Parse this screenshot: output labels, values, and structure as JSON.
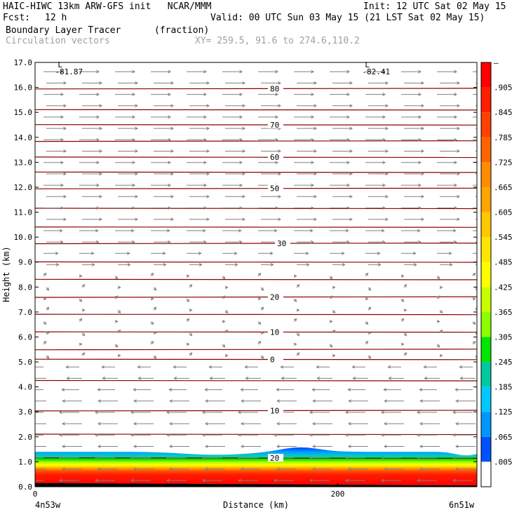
{
  "header": {
    "model_line": "HAIC-HIWC 13km ARW-GFS init   NCAR/MMM",
    "init_line": "Init: 12 UTC Sat 02 May 15",
    "fcst_label": "Fcst:",
    "fcst_value": "12 h",
    "valid_line": "Valid: 00 UTC Sun 03 May 15 (21 LST Sat 02 May 15)",
    "field_name": "Boundary Layer Tracer",
    "field_units": "(fraction)",
    "overlay_name": "Circulation vectors",
    "xy_line": "XY= 259.5, 91.6 to 274.6,110.2"
  },
  "chart_data": {
    "type": "heatmap",
    "xlabel": "Distance (km)",
    "ylabel": "Height (km)",
    "xlim": [
      0,
      292
    ],
    "ylim": [
      0.0,
      17.0
    ],
    "x_ticks": [
      {
        "value": 0,
        "label": "0"
      },
      {
        "value": 200,
        "label": "200"
      }
    ],
    "x_end_labels": {
      "left": "4n53w",
      "right": "6n51w"
    },
    "y_ticks": [
      "0.0",
      "1.0",
      "2.0",
      "3.0",
      "4.0",
      "5.0",
      "6.0",
      "7.0",
      "8.0",
      "9.0",
      "10.0",
      "11.0",
      "12.0",
      "13.0",
      "14.0",
      "15.0",
      "16.0",
      "17.0"
    ],
    "colorbar_labels": [
      "–",
      ".905",
      ".845",
      ".785",
      ".725",
      ".665",
      ".605",
      ".545",
      ".485",
      ".425",
      ".365",
      ".305",
      ".245",
      ".185",
      ".125",
      ".065",
      ".005"
    ],
    "colorbar_colors": [
      "#ff0000",
      "#ff1e00",
      "#ff4000",
      "#ff6400",
      "#ff8c00",
      "#ffa500",
      "#ffc800",
      "#ffe600",
      "#ffff00",
      "#c8ff00",
      "#8cff00",
      "#00e600",
      "#00c8a0",
      "#00c8ff",
      "#0096ff",
      "#0050ff",
      "#ffffff"
    ],
    "isotherms": [
      {
        "value": "80",
        "height": 15.95
      },
      {
        "value": "",
        "height": 15.1
      },
      {
        "value": "70",
        "height": 14.5
      },
      {
        "value": "",
        "height": 13.85
      },
      {
        "value": "60",
        "height": 13.2
      },
      {
        "value": "",
        "height": 12.6
      },
      {
        "value": "50",
        "height": 11.95
      },
      {
        "value": "",
        "height": 11.15
      },
      {
        "value": "",
        "height": 10.4
      },
      {
        "value": "30",
        "height": 9.75
      },
      {
        "value": "",
        "height": 9.0
      },
      {
        "value": "",
        "height": 8.3
      },
      {
        "value": "20",
        "height": 7.6
      },
      {
        "value": "",
        "height": 6.9
      },
      {
        "value": "10",
        "height": 6.2
      },
      {
        "value": "",
        "height": 5.5
      },
      {
        "value": "0",
        "height": 5.1
      },
      {
        "value": "",
        "height": 4.25
      },
      {
        "value": "10",
        "height": 3.05
      },
      {
        "value": "",
        "height": 2.1
      },
      {
        "value": "20",
        "height": 1.15
      }
    ],
    "lows": [
      {
        "symbol": "L",
        "value": "-81.87",
        "x": 15,
        "height": 16.8
      },
      {
        "symbol": "L",
        "value": "-82.41",
        "x": 218,
        "height": 16.8
      }
    ],
    "tracer_layer": {
      "top_km": 1.4,
      "core_top_km": 0.9
    }
  },
  "colors": {
    "isotherm": "#8b0000",
    "vector": "#808080",
    "header_gray": "#a0a0a0"
  }
}
